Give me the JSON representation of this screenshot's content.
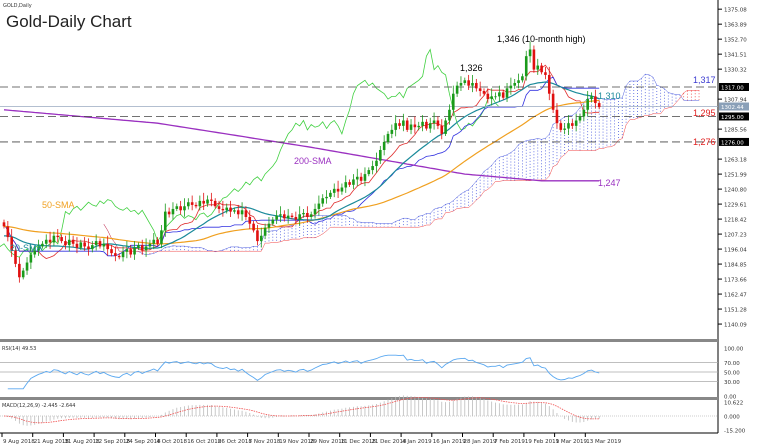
{
  "chart_data": {
    "type": "candlestick",
    "symbol_label": "GOLD,Daily",
    "title": "Gold-Daily Chart",
    "y_ticks": [
      "1375.08",
      "1363.89",
      "1352.70",
      "1341.51",
      "1330.32",
      "1307.94",
      "1285.56",
      "1263.18",
      "1251.99",
      "1240.80",
      "1229.61",
      "1218.42",
      "1207.23",
      "1196.04",
      "1184.85",
      "1173.66",
      "1162.47",
      "1151.28",
      "1140.09"
    ],
    "ylim": [
      1140.09,
      1375.08
    ],
    "price_boxes": [
      {
        "value": "1317.00",
        "price": 1317,
        "color": "#000000"
      },
      {
        "value": "1302.44",
        "price": 1302.44,
        "color": "#8aa0b8"
      },
      {
        "value": "1295.00",
        "price": 1295,
        "color": "#000000"
      },
      {
        "value": "1276.00",
        "price": 1276,
        "color": "#000000"
      }
    ],
    "x_ticks": [
      "9 Aug 2018",
      "21 Aug 2018",
      "31 Aug 2018",
      "12 Sep 2018",
      "24 Sep 2018",
      "4 Oct 2018",
      "16 Oct 2018",
      "26 Oct 2018",
      "7 Nov 2018",
      "19 Nov 2018",
      "29 Nov 2018",
      "11 Dec 2018",
      "21 Dec 2018",
      "4 Jan 2019",
      "16 Jan 2019",
      "28 Jan 2019",
      "7 Feb 2019",
      "19 Feb 2019",
      "1 Mar 2019",
      "13 Mar 2019"
    ],
    "closes": [
      1213,
      1205,
      1195,
      1185,
      1175,
      1180,
      1186,
      1192,
      1195,
      1198,
      1200,
      1203,
      1201,
      1206,
      1205,
      1202,
      1199,
      1203,
      1200,
      1197,
      1201,
      1198,
      1196,
      1199,
      1202,
      1198,
      1200,
      1196,
      1193,
      1191,
      1190,
      1194,
      1196,
      1192,
      1197,
      1199,
      1195,
      1198,
      1200,
      1203,
      1200,
      1210,
      1224,
      1222,
      1226,
      1228,
      1225,
      1228,
      1231,
      1229,
      1228,
      1232,
      1230,
      1233,
      1232,
      1228,
      1226,
      1225,
      1227,
      1224,
      1225,
      1222,
      1225,
      1220,
      1215,
      1210,
      1202,
      1206,
      1212,
      1215,
      1218,
      1221,
      1222,
      1219,
      1221,
      1220,
      1218,
      1222,
      1223,
      1220,
      1222,
      1226,
      1230,
      1234,
      1235,
      1238,
      1241,
      1239,
      1242,
      1246,
      1244,
      1248,
      1250,
      1247,
      1252,
      1255,
      1258,
      1262,
      1270,
      1276,
      1282,
      1285,
      1290,
      1288,
      1292,
      1285,
      1289,
      1287,
      1288,
      1291,
      1286,
      1290,
      1292,
      1288,
      1282,
      1292,
      1300,
      1312,
      1318,
      1320,
      1322,
      1318,
      1320,
      1316,
      1314,
      1312,
      1308,
      1310,
      1310,
      1313,
      1309,
      1316,
      1318,
      1320,
      1322,
      1325,
      1340,
      1345,
      1330,
      1333,
      1328,
      1326,
      1312,
      1300,
      1290,
      1285,
      1286,
      1290,
      1288,
      1292,
      1295,
      1300,
      1308,
      1310,
      1305,
      1302
    ],
    "sma200_anchors": [
      [
        0,
        1300
      ],
      [
        40,
        1290
      ],
      [
        80,
        1272
      ],
      [
        100,
        1262
      ],
      [
        120,
        1252
      ],
      [
        140,
        1247
      ],
      [
        155,
        1247
      ]
    ],
    "levels": [
      {
        "price": 1317,
        "label": "1,317",
        "color": "#3a3ad0",
        "style": "dashed"
      },
      {
        "price": 1295,
        "label": "1,295",
        "color": "#e02020",
        "style": "dashed"
      },
      {
        "price": 1276,
        "label": "1,276",
        "color": "#e02020",
        "style": "dashed"
      }
    ],
    "annotations": [
      {
        "text": "1,346 (10-month high)",
        "color": "#000000"
      },
      {
        "text": "1,326",
        "color": "#000000"
      },
      {
        "text": "1,310",
        "color": "#1a8a9a"
      },
      {
        "text": "1,247",
        "color": "#9a30c0"
      },
      {
        "text": "200-SMA",
        "color": "#9a30c0"
      },
      {
        "text": "50-SMA",
        "color": "#f0a020"
      },
      {
        "text": "20-SMA",
        "color": "#1a8a9a"
      }
    ],
    "colors": {
      "up": "#1a9a1a",
      "down": "#e01010",
      "sma20": "#1a8a9a",
      "sma50": "#f0a020",
      "sma200": "#9a30c0",
      "tenkan": "#e03030",
      "kijun": "#3030e0",
      "chikou": "#40d040",
      "cloud_up": "#5060e0",
      "cloud_down": "#f04040"
    },
    "rsi": {
      "label": "RSI(14) 49.53",
      "ticks": [
        "100.00",
        "70.00",
        "50.00",
        "30.00",
        "0.00"
      ]
    },
    "macd": {
      "label": "MACD(12,26,9) -2.445 -2.644",
      "ticks": [
        "10.622",
        "0.000",
        "-15.200"
      ]
    }
  }
}
